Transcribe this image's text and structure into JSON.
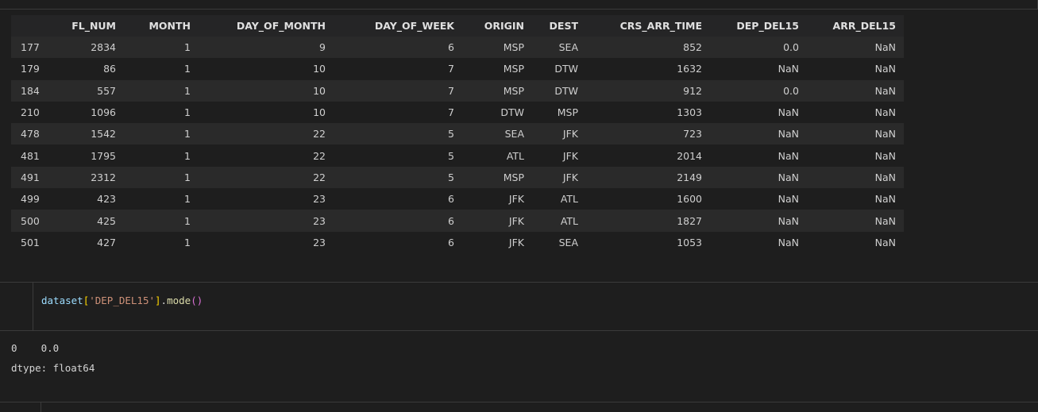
{
  "table": {
    "columns": [
      "",
      "FL_NUM",
      "MONTH",
      "DAY_OF_MONTH",
      "DAY_OF_WEEK",
      "ORIGIN",
      "DEST",
      "CRS_ARR_TIME",
      "DEP_DEL15",
      "ARR_DEL15"
    ],
    "rows": [
      [
        "177",
        "2834",
        "1",
        "9",
        "6",
        "MSP",
        "SEA",
        "852",
        "0.0",
        "NaN"
      ],
      [
        "179",
        "86",
        "1",
        "10",
        "7",
        "MSP",
        "DTW",
        "1632",
        "NaN",
        "NaN"
      ],
      [
        "184",
        "557",
        "1",
        "10",
        "7",
        "MSP",
        "DTW",
        "912",
        "0.0",
        "NaN"
      ],
      [
        "210",
        "1096",
        "1",
        "10",
        "7",
        "DTW",
        "MSP",
        "1303",
        "NaN",
        "NaN"
      ],
      [
        "478",
        "1542",
        "1",
        "22",
        "5",
        "SEA",
        "JFK",
        "723",
        "NaN",
        "NaN"
      ],
      [
        "481",
        "1795",
        "1",
        "22",
        "5",
        "ATL",
        "JFK",
        "2014",
        "NaN",
        "NaN"
      ],
      [
        "491",
        "2312",
        "1",
        "22",
        "5",
        "MSP",
        "JFK",
        "2149",
        "NaN",
        "NaN"
      ],
      [
        "499",
        "423",
        "1",
        "23",
        "6",
        "JFK",
        "ATL",
        "1600",
        "NaN",
        "NaN"
      ],
      [
        "500",
        "425",
        "1",
        "23",
        "6",
        "JFK",
        "ATL",
        "1827",
        "NaN",
        "NaN"
      ],
      [
        "501",
        "427",
        "1",
        "23",
        "6",
        "JFK",
        "SEA",
        "1053",
        "NaN",
        "NaN"
      ]
    ]
  },
  "code_cell": {
    "var": "dataset",
    "open_bracket": "[",
    "string": "'DEP_DEL15'",
    "close_bracket": "]",
    "dot": ".",
    "method": "mode",
    "parens": "()"
  },
  "output": {
    "line1": "0    0.0",
    "line2": "dtype: float64"
  },
  "colors": {
    "background": "#1e1e1e",
    "row_alt": "#2a2a2a",
    "string": "#ce9178",
    "variable": "#9cdcfe",
    "function": "#dcdcaa"
  }
}
